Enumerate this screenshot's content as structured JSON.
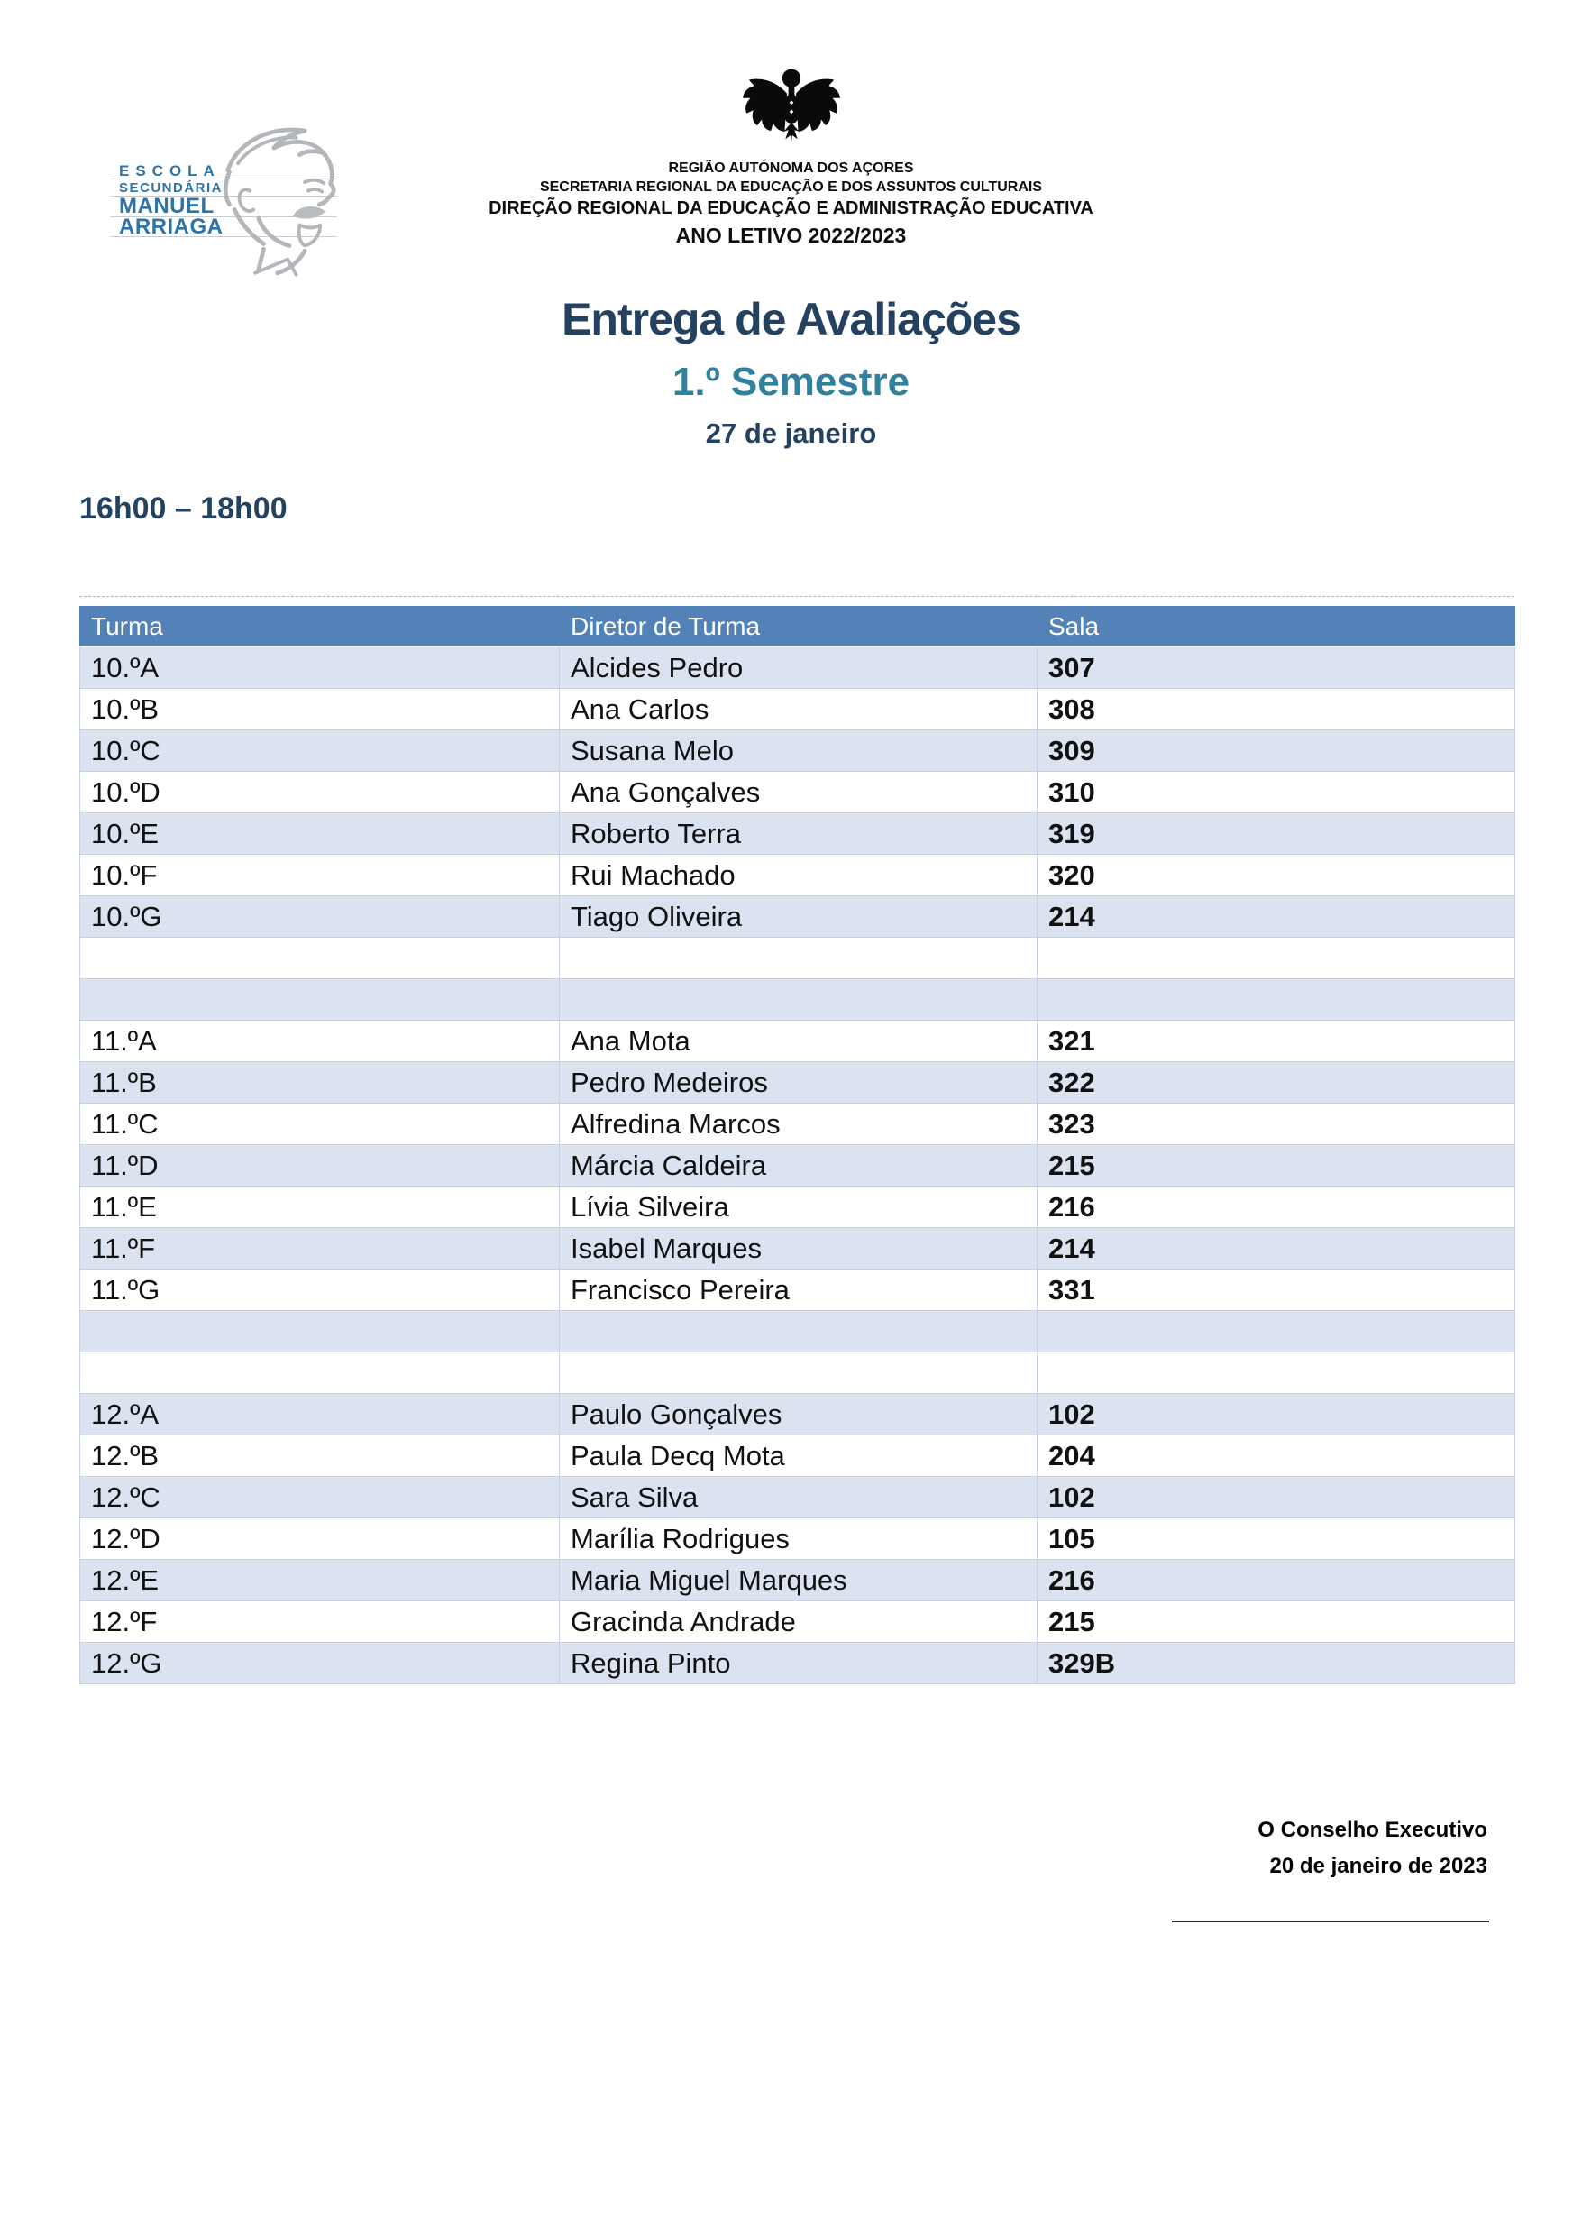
{
  "school_logo": {
    "line1": "ESCOLA",
    "line2": "SECUNDÁRIA",
    "line3": "MANUEL",
    "line4": "ARRIAGA"
  },
  "government_header": {
    "line1": "REGIÃO AUTÓNOMA DOS AÇORES",
    "line2": "SECRETARIA REGIONAL DA EDUCAÇÃO E DOS ASSUNTOS CULTURAIS",
    "line3": "DIREÇÃO REGIONAL DA EDUCAÇÃO E ADMINISTRAÇÃO EDUCATIVA",
    "line4": "ANO LETIVO 2022/2023"
  },
  "title": {
    "main": "Entrega de Avaliações",
    "semester": "1.º Semestre",
    "date": "27 de janeiro"
  },
  "session_time": "16h00 – 18h00",
  "table": {
    "columns": [
      "Turma",
      "Diretor de Turma",
      "Sala"
    ],
    "rows": [
      {
        "turma": "10.ºA",
        "diretor": "Alcides Pedro",
        "sala": "307"
      },
      {
        "turma": "10.ºB",
        "diretor": "Ana Carlos",
        "sala": "308"
      },
      {
        "turma": "10.ºC",
        "diretor": "Susana Melo",
        "sala": "309"
      },
      {
        "turma": "10.ºD",
        "diretor": "Ana Gonçalves",
        "sala": "310"
      },
      {
        "turma": "10.ºE",
        "diretor": "Roberto Terra",
        "sala": "319"
      },
      {
        "turma": "10.ºF",
        "diretor": "Rui Machado",
        "sala": "320"
      },
      {
        "turma": "10.ºG",
        "diretor": "Tiago Oliveira",
        "sala": "214"
      },
      {
        "turma": "",
        "diretor": "",
        "sala": ""
      },
      {
        "turma": "",
        "diretor": "",
        "sala": ""
      },
      {
        "turma": "11.ºA",
        "diretor": "Ana Mota",
        "sala": "321"
      },
      {
        "turma": "11.ºB",
        "diretor": "Pedro Medeiros",
        "sala": "322"
      },
      {
        "turma": "11.ºC",
        "diretor": "Alfredina Marcos",
        "sala": "323"
      },
      {
        "turma": "11.ºD",
        "diretor": "Márcia Caldeira",
        "sala": "215"
      },
      {
        "turma": "11.ºE",
        "diretor": "Lívia Silveira",
        "sala": "216"
      },
      {
        "turma": "11.ºF",
        "diretor": "Isabel Marques",
        "sala": "214"
      },
      {
        "turma": "11.ºG",
        "diretor": "Francisco Pereira",
        "sala": "331"
      },
      {
        "turma": "",
        "diretor": "",
        "sala": ""
      },
      {
        "turma": "",
        "diretor": "",
        "sala": ""
      },
      {
        "turma": "12.ºA",
        "diretor": "Paulo Gonçalves",
        "sala": "102"
      },
      {
        "turma": "12.ºB",
        "diretor": "Paula Decq Mota",
        "sala": "204"
      },
      {
        "turma": "12.ºC",
        "diretor": "Sara Silva",
        "sala": "102"
      },
      {
        "turma": "12.ºD",
        "diretor": "Marília Rodrigues",
        "sala": "105"
      },
      {
        "turma": "12.ºE",
        "diretor": "Maria Miguel Marques",
        "sala": "216"
      },
      {
        "turma": "12.ºF",
        "diretor": "Gracinda Andrade",
        "sala": "215"
      },
      {
        "turma": "12.ºG",
        "diretor": "Regina Pinto",
        "sala": "329B"
      }
    ]
  },
  "footer": {
    "signed_by": "O Conselho Executivo",
    "signature_date": "20 de janeiro de 2023"
  },
  "colors": {
    "table_header_blue": "#5282b8",
    "table_row_shaded": "#dbe2f0",
    "title_navy": "#24425f",
    "semester_teal": "#31809d",
    "logo_blue": "#2e74a6"
  }
}
